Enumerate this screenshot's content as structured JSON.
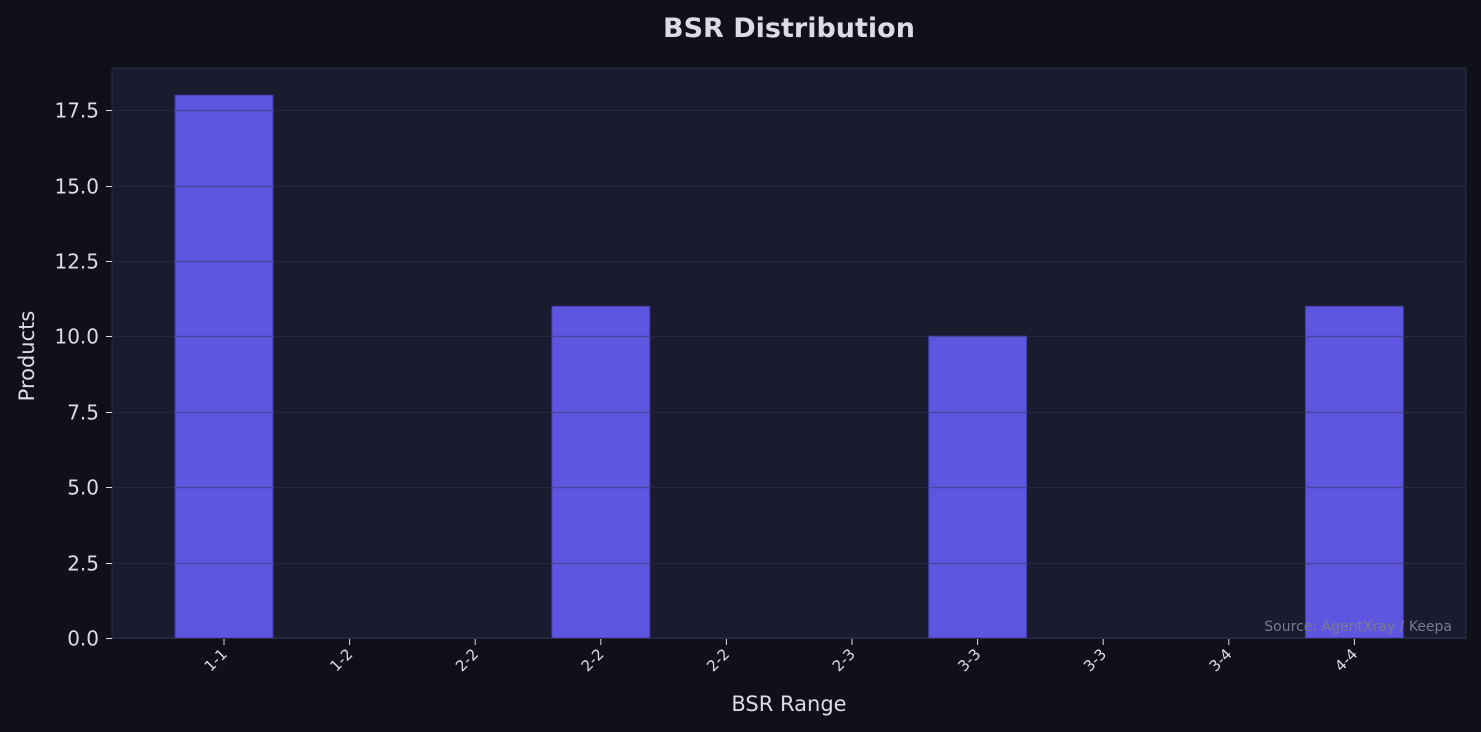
{
  "chart_data": {
    "type": "bar",
    "title": "BSR Distribution",
    "xlabel": "BSR Range",
    "ylabel": "Products",
    "categories": [
      "1-1",
      "1-2",
      "2-2",
      "2-2",
      "2-2",
      "2-3",
      "3-3",
      "3-3",
      "3-4",
      "4-4"
    ],
    "values": [
      18,
      0,
      0,
      11,
      0,
      0,
      10,
      0,
      0,
      11
    ],
    "ylim": [
      0,
      18.9
    ],
    "yticks": [
      0.0,
      2.5,
      5.0,
      7.5,
      10.0,
      12.5,
      15.0,
      17.5
    ],
    "ytick_labels": [
      "0.0",
      "2.5",
      "5.0",
      "7.5",
      "10.0",
      "12.5",
      "15.0",
      "17.5"
    ],
    "grid": true,
    "legend": "none",
    "source_note": "Source: AgentXray / Keepa"
  },
  "colors": {
    "page_background": "#0f1019",
    "plot_background": "#1a1b2e",
    "bar_fill": "#5e56e0",
    "bar_edge": "#3d3a9e",
    "grid": "#26283d",
    "text": "#dcdce4",
    "source_text": "#7a7b90"
  }
}
